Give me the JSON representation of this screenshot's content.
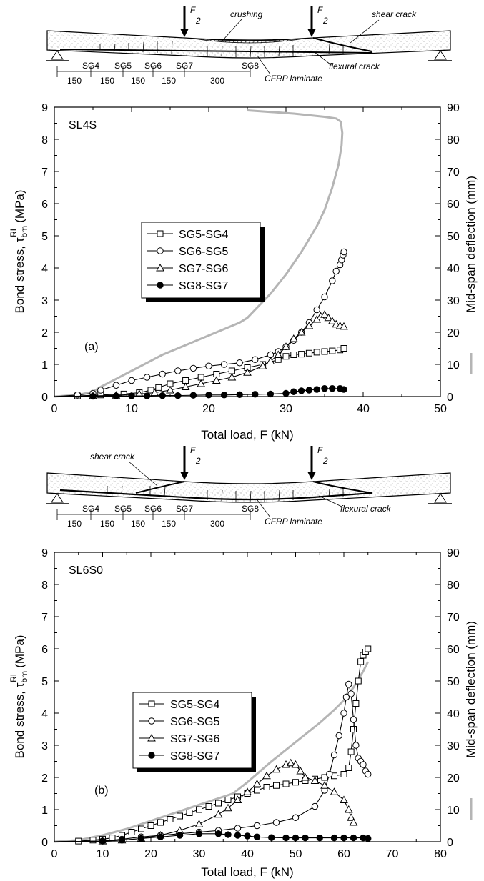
{
  "schematics": [
    {
      "labels": {
        "crushing": "crushing",
        "shear_crack": "shear crack",
        "flexural_crack": "flexural crack",
        "cfrp": "CFRP laminate",
        "load": "F",
        "load_den": "2"
      },
      "gauges": [
        "SG4",
        "SG5",
        "SG6",
        "SG7",
        "SG8"
      ],
      "spacings": [
        "150",
        "150",
        "150",
        "150",
        "300"
      ]
    },
    {
      "labels": {
        "shear_crack": "shear crack",
        "flexural_crack": "flexural crack",
        "cfrp": "CFRP laminate",
        "load": "F",
        "load_den": "2"
      },
      "gauges": [
        "SG4",
        "SG5",
        "SG6",
        "SG7",
        "SG8"
      ],
      "spacings": [
        "150",
        "150",
        "150",
        "150",
        "300"
      ]
    }
  ],
  "chart_data": [
    {
      "type": "line",
      "panel_label": "(a)",
      "specimen": "SL4S",
      "xlabel": "Total load, F (kN)",
      "ylabel": "Bond stress, τbm RL (MPa)",
      "ylabel_parts": {
        "pre": "Bond stress, ",
        "sym": "τ",
        "sub": "bm",
        "sup": "RL",
        "post": " (MPa)"
      },
      "y2label": "Mid-span deflection (mm)",
      "xlim": [
        0,
        50
      ],
      "ylim": [
        0,
        9
      ],
      "y2lim": [
        0,
        90
      ],
      "xticks": [
        "0",
        "10",
        "20",
        "30",
        "40",
        "50"
      ],
      "yticks": [
        "0",
        "1",
        "2",
        "3",
        "4",
        "5",
        "6",
        "7",
        "8",
        "9"
      ],
      "y2ticks": [
        "0",
        "10",
        "20",
        "30",
        "40",
        "50",
        "60",
        "70",
        "80",
        "90"
      ],
      "legend_position": "center-left",
      "deflection": {
        "x": [
          0,
          3,
          5,
          6,
          8,
          10,
          12,
          14,
          16,
          18,
          20,
          22,
          24,
          25,
          26,
          28,
          30,
          32,
          34,
          35,
          36,
          36.8,
          37.2,
          37.3,
          37.1,
          36.5,
          35,
          33,
          31,
          25
        ],
        "y": [
          0,
          0.5,
          1.5,
          3,
          5.5,
          8,
          10.5,
          13,
          15,
          17,
          19,
          21,
          23,
          24.5,
          27,
          32,
          38,
          45,
          53,
          58,
          65,
          72,
          78,
          82,
          85.5,
          86.5,
          87,
          87.5,
          88,
          89
        ]
      },
      "series": [
        {
          "name": "SG5-SG4",
          "marker": "square",
          "x": [
            0,
            3,
            6,
            9,
            11,
            12.5,
            13.5,
            15,
            17,
            19,
            21,
            23,
            25,
            27,
            29,
            30,
            31,
            32,
            33,
            34,
            35,
            36,
            37,
            37.5
          ],
          "y": [
            0,
            0.02,
            0.05,
            0.08,
            0.12,
            0.2,
            0.28,
            0.4,
            0.5,
            0.6,
            0.7,
            0.8,
            0.9,
            1.0,
            1.15,
            1.25,
            1.3,
            1.32,
            1.35,
            1.38,
            1.4,
            1.42,
            1.45,
            1.5
          ]
        },
        {
          "name": "SG6-SG5",
          "marker": "circle",
          "x": [
            0,
            3,
            5,
            6,
            8,
            10,
            12,
            14,
            16,
            18,
            20,
            22,
            24,
            26,
            28,
            29,
            30,
            31,
            32,
            33,
            34,
            35,
            36,
            36.5,
            37,
            37.2,
            37.4,
            37.5
          ],
          "y": [
            0,
            0.05,
            0.1,
            0.2,
            0.35,
            0.5,
            0.6,
            0.7,
            0.8,
            0.88,
            0.95,
            1.0,
            1.05,
            1.15,
            1.3,
            1.4,
            1.55,
            1.75,
            2.0,
            2.3,
            2.7,
            3.1,
            3.6,
            3.9,
            4.1,
            4.25,
            4.4,
            4.5
          ]
        },
        {
          "name": "SG7-SG6",
          "marker": "triangle",
          "x": [
            0,
            5,
            8,
            11,
            13,
            15,
            17,
            19,
            21,
            23,
            25,
            27,
            28,
            29,
            30,
            31,
            32,
            33,
            34,
            34.5,
            35,
            35.5,
            36,
            36.5,
            37,
            37.5
          ],
          "y": [
            0,
            0.02,
            0.04,
            0.08,
            0.12,
            0.2,
            0.3,
            0.4,
            0.5,
            0.6,
            0.75,
            0.95,
            1.1,
            1.3,
            1.55,
            1.8,
            2.0,
            2.2,
            2.4,
            2.5,
            2.55,
            2.45,
            2.35,
            2.25,
            2.2,
            2.18
          ]
        },
        {
          "name": "SG8-SG7",
          "marker": "filled-circle",
          "x": [
            0,
            5,
            8,
            10,
            12,
            14,
            16,
            18,
            20,
            22,
            24,
            26,
            28,
            30,
            31,
            32,
            33,
            34,
            35,
            36,
            37,
            37.5
          ],
          "y": [
            0,
            0.01,
            0.02,
            0.02,
            0.02,
            0.03,
            0.03,
            0.04,
            0.05,
            0.05,
            0.06,
            0.07,
            0.08,
            0.1,
            0.15,
            0.18,
            0.2,
            0.22,
            0.25,
            0.25,
            0.25,
            0.22
          ]
        }
      ]
    },
    {
      "type": "line",
      "panel_label": "(b)",
      "specimen": "SL6S0",
      "xlabel": "Total load, F (kN)",
      "ylabel": "Bond stress, τbm RL (MPa)",
      "ylabel_parts": {
        "pre": "Bond stress, ",
        "sym": "τ",
        "sub": "bm",
        "sup": "RL",
        "post": " (MPa)"
      },
      "y2label": "Mid-span deflection (mm)",
      "xlim": [
        0,
        80
      ],
      "ylim": [
        0,
        9
      ],
      "y2lim": [
        0,
        90
      ],
      "xticks": [
        "0",
        "10",
        "20",
        "30",
        "40",
        "50",
        "60",
        "70",
        "80"
      ],
      "yticks": [
        "0",
        "1",
        "2",
        "3",
        "4",
        "5",
        "6",
        "7",
        "8",
        "9"
      ],
      "y2ticks": [
        "0",
        "10",
        "20",
        "30",
        "40",
        "50",
        "60",
        "70",
        "80",
        "90"
      ],
      "legend_position": "center-left",
      "deflection": {
        "x": [
          0,
          5,
          10,
          15,
          20,
          25,
          30,
          35,
          37,
          40,
          45,
          50,
          55,
          58,
          60,
          62,
          64,
          65
        ],
        "y": [
          0,
          0.5,
          2,
          4,
          6.5,
          9,
          11.5,
          14,
          15,
          18.5,
          25,
          31,
          37,
          41,
          44,
          48,
          53,
          56
        ]
      },
      "series": [
        {
          "name": "SG5-SG4",
          "marker": "square",
          "x": [
            0,
            5,
            8,
            10,
            12,
            14,
            16,
            18,
            20,
            22,
            24,
            26,
            28,
            30,
            32,
            34,
            36,
            38,
            40,
            42,
            44,
            46,
            48,
            50,
            52,
            54,
            56,
            58,
            60,
            61,
            61.5,
            62,
            62.5,
            63,
            63.5,
            64,
            64.5,
            65
          ],
          "y": [
            0,
            0.02,
            0.05,
            0.08,
            0.12,
            0.2,
            0.3,
            0.4,
            0.5,
            0.6,
            0.7,
            0.8,
            0.9,
            1.0,
            1.1,
            1.2,
            1.3,
            1.4,
            1.5,
            1.6,
            1.7,
            1.75,
            1.8,
            1.85,
            1.9,
            1.95,
            2.0,
            2.05,
            2.1,
            2.3,
            2.8,
            3.5,
            4.3,
            5.0,
            5.6,
            5.8,
            5.9,
            6.0
          ]
        },
        {
          "name": "SG6-SG5",
          "marker": "circle",
          "x": [
            0,
            10,
            14,
            18,
            22,
            26,
            30,
            34,
            38,
            42,
            46,
            50,
            54,
            56,
            57,
            58,
            59,
            60,
            60.5,
            61,
            61.5,
            62,
            62.5,
            63,
            63.5,
            64,
            64.5,
            65
          ],
          "y": [
            0,
            0.02,
            0.08,
            0.15,
            0.2,
            0.25,
            0.3,
            0.35,
            0.42,
            0.5,
            0.6,
            0.75,
            1.1,
            1.6,
            2.1,
            2.7,
            3.3,
            4.0,
            4.5,
            4.9,
            4.6,
            3.8,
            3.0,
            2.6,
            2.5,
            2.4,
            2.2,
            2.1
          ]
        },
        {
          "name": "SG7-SG6",
          "marker": "triangle",
          "x": [
            0,
            10,
            14,
            18,
            22,
            26,
            30,
            34,
            36,
            38,
            40,
            42,
            44,
            46,
            48,
            49,
            50,
            51,
            52,
            54,
            56,
            58,
            60,
            61,
            61.5,
            62
          ],
          "y": [
            0,
            0.02,
            0.05,
            0.1,
            0.2,
            0.35,
            0.55,
            0.85,
            1.05,
            1.3,
            1.55,
            1.8,
            2.05,
            2.25,
            2.4,
            2.45,
            2.4,
            2.2,
            2.0,
            1.9,
            1.75,
            1.55,
            1.3,
            1.0,
            0.75,
            0.6
          ]
        },
        {
          "name": "SG8-SG7",
          "marker": "filled-circle",
          "x": [
            0,
            10,
            14,
            18,
            22,
            26,
            30,
            34,
            36,
            38,
            40,
            42,
            45,
            48,
            50,
            52,
            55,
            58,
            60,
            62,
            64,
            65
          ],
          "y": [
            0,
            0.02,
            0.05,
            0.1,
            0.15,
            0.2,
            0.25,
            0.25,
            0.22,
            0.2,
            0.18,
            0.15,
            0.13,
            0.12,
            0.12,
            0.12,
            0.12,
            0.12,
            0.12,
            0.12,
            0.12,
            0.1
          ]
        }
      ]
    }
  ],
  "colors": {
    "deflection": "#b5b5b5",
    "series": "#000000",
    "axis": "#000000",
    "legend_shadow": "#000000"
  }
}
